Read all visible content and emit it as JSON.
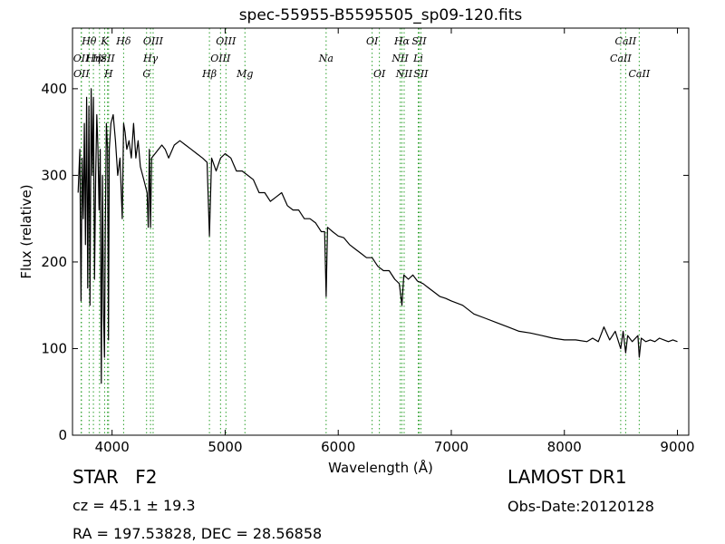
{
  "chart_data": {
    "type": "line",
    "title": "spec-55955-B5595505_sp09-120.fits",
    "xlabel": "Wavelength (Å)",
    "ylabel": "Flux (relative)",
    "xlim": [
      3650,
      9100
    ],
    "ylim": [
      0,
      470
    ],
    "xticks": [
      4000,
      5000,
      6000,
      7000,
      8000,
      9000
    ],
    "yticks": [
      0,
      100,
      200,
      300,
      400
    ],
    "grid": false,
    "legend": "none",
    "colors": {
      "spectrum": "#000000",
      "line_markers": "#2ca02c"
    },
    "series": [
      {
        "x": [
          3700,
          3715,
          3725,
          3735,
          3745,
          3755,
          3765,
          3775,
          3785,
          3795,
          3805,
          3815,
          3825,
          3835,
          3845,
          3855,
          3865,
          3875,
          3885,
          3895,
          3905,
          3915,
          3925,
          3933,
          3940,
          3950,
          3960,
          3968,
          3975,
          3990,
          4010,
          4030,
          4050,
          4070,
          4090,
          4102,
          4115,
          4130,
          4150,
          4170,
          4190,
          4210,
          4230,
          4250,
          4270,
          4290,
          4310,
          4320,
          4330,
          4340,
          4350,
          4380,
          4410,
          4440,
          4470,
          4500,
          4550,
          4600,
          4650,
          4700,
          4750,
          4800,
          4840,
          4861,
          4880,
          4920,
          4960,
          5000,
          5050,
          5100,
          5150,
          5200,
          5250,
          5300,
          5350,
          5400,
          5450,
          5500,
          5550,
          5600,
          5650,
          5700,
          5750,
          5800,
          5850,
          5880,
          5893,
          5905,
          5950,
          6000,
          6050,
          6100,
          6150,
          6200,
          6250,
          6300,
          6350,
          6400,
          6450,
          6500,
          6540,
          6563,
          6580,
          6620,
          6660,
          6700,
          6750,
          6800,
          6850,
          6900,
          6950,
          7000,
          7100,
          7200,
          7300,
          7400,
          7500,
          7600,
          7700,
          7800,
          7900,
          8000,
          8100,
          8200,
          8250,
          8300,
          8350,
          8400,
          8450,
          8498,
          8520,
          8542,
          8560,
          8600,
          8650,
          8662,
          8680,
          8720,
          8760,
          8800,
          8840,
          8880,
          8920,
          8960,
          9000
        ],
        "y": [
          280,
          330,
          155,
          320,
          250,
          360,
          220,
          390,
          170,
          380,
          150,
          400,
          300,
          390,
          180,
          300,
          370,
          330,
          260,
          330,
          60,
          300,
          140,
          90,
          240,
          360,
          330,
          110,
          330,
          360,
          370,
          340,
          300,
          320,
          250,
          360,
          350,
          330,
          340,
          320,
          360,
          320,
          340,
          310,
          300,
          290,
          280,
          240,
          330,
          240,
          320,
          325,
          330,
          335,
          330,
          320,
          335,
          340,
          335,
          330,
          325,
          320,
          315,
          230,
          320,
          305,
          320,
          325,
          320,
          305,
          305,
          300,
          295,
          280,
          280,
          270,
          275,
          280,
          265,
          260,
          260,
          250,
          250,
          245,
          235,
          235,
          160,
          240,
          235,
          230,
          228,
          220,
          215,
          210,
          205,
          205,
          195,
          190,
          190,
          180,
          175,
          150,
          185,
          180,
          185,
          178,
          175,
          170,
          165,
          160,
          158,
          155,
          150,
          140,
          135,
          130,
          125,
          120,
          118,
          115,
          112,
          110,
          110,
          108,
          112,
          108,
          125,
          110,
          120,
          100,
          120,
          95,
          115,
          108,
          115,
          90,
          112,
          108,
          110,
          108,
          112,
          110,
          108,
          110,
          108
        ]
      }
    ],
    "annotations": [
      {
        "label": "OII",
        "x": 3727,
        "row": 2
      },
      {
        "label": "OII",
        "x": 3729,
        "row": 3
      },
      {
        "label": "Hθ",
        "x": 3797,
        "row": 1
      },
      {
        "label": "Hη",
        "x": 3835,
        "row": 2
      },
      {
        "label": "Hε",
        "x": 3889,
        "row": 2
      },
      {
        "label": "K",
        "x": 3934,
        "row": 1
      },
      {
        "label": "SII",
        "x": 3960,
        "row": 2
      },
      {
        "label": "H",
        "x": 3969,
        "row": 3
      },
      {
        "label": "Hδ",
        "x": 4102,
        "row": 1
      },
      {
        "label": "OIII",
        "x": 4363,
        "row": 1
      },
      {
        "label": "Hγ",
        "x": 4340,
        "row": 2
      },
      {
        "label": "G",
        "x": 4305,
        "row": 3
      },
      {
        "label": "OIII",
        "x": 5007,
        "row": 1
      },
      {
        "label": "OIII",
        "x": 4959,
        "row": 2
      },
      {
        "label": "Hβ",
        "x": 4861,
        "row": 3
      },
      {
        "label": "Mg",
        "x": 5175,
        "row": 3
      },
      {
        "label": "Na",
        "x": 5893,
        "row": 2
      },
      {
        "label": "OI",
        "x": 6300,
        "row": 1
      },
      {
        "label": "OI",
        "x": 6364,
        "row": 3
      },
      {
        "label": "Hα",
        "x": 6563,
        "row": 1
      },
      {
        "label": "SII",
        "x": 6716,
        "row": 1
      },
      {
        "label": "NII",
        "x": 6548,
        "row": 2
      },
      {
        "label": "Li",
        "x": 6708,
        "row": 2
      },
      {
        "label": "NII",
        "x": 6583,
        "row": 3
      },
      {
        "label": "SII",
        "x": 6731,
        "row": 3
      },
      {
        "label": "CaII",
        "x": 8542,
        "row": 1
      },
      {
        "label": "CaII",
        "x": 8498,
        "row": 2
      },
      {
        "label": "CaII",
        "x": 8662,
        "row": 3
      }
    ]
  },
  "info": {
    "class_label": "STAR",
    "subclass": "F2",
    "redshift": "cz = 45.1  ± 19.3",
    "coords": "RA = 197.53828, DEC = 28.56858",
    "survey": "LAMOST DR1",
    "obs_date": "Obs-Date:20120128"
  }
}
